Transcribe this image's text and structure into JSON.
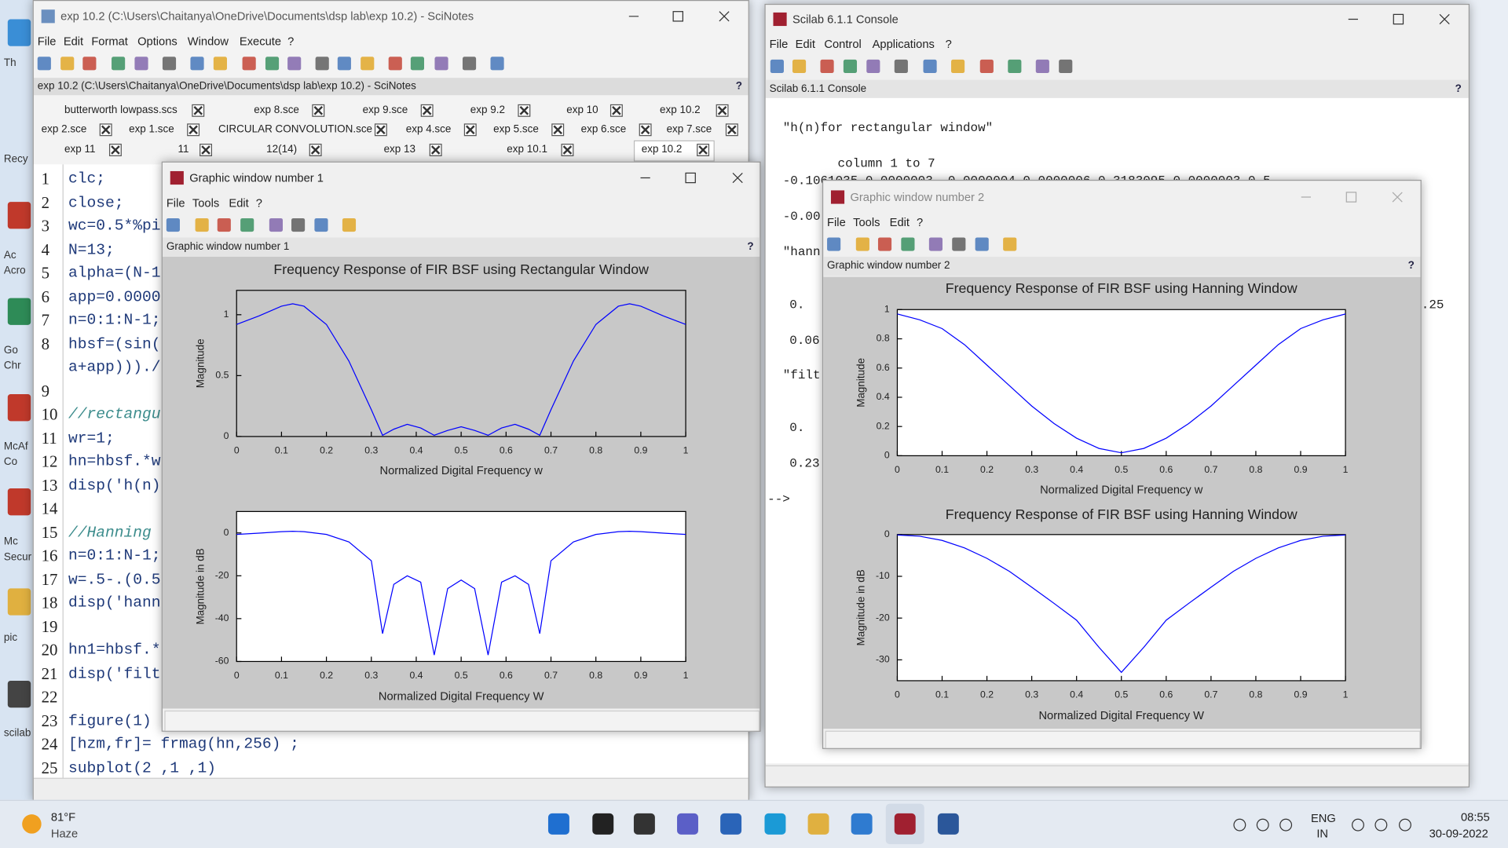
{
  "help_mark": "?",
  "desktop": {
    "icons": [
      "Th",
      "Recy",
      "Ac",
      "Acro",
      "Go",
      "Chr",
      "McAf",
      "Co",
      "Mc",
      "Secur",
      "pic",
      "scilab"
    ]
  },
  "scinotes": {
    "title": "exp 10.2 (C:\\Users\\Chaitanya\\OneDrive\\Documents\\dsp lab\\exp 10.2) - SciNotes",
    "menu": [
      "File",
      "Edit",
      "Format",
      "Options",
      "Window",
      "Execute",
      "?"
    ],
    "path": "exp 10.2 (C:\\Users\\Chaitanya\\OneDrive\\Documents\\dsp lab\\exp 10.2) - SciNotes",
    "tabs": [
      [
        "butterworth lowpass.scs",
        "exp 8.sce",
        "exp 9.sce",
        "exp 9.2",
        "exp 10",
        "exp 10.2"
      ],
      [
        "exp 2.sce",
        "exp 1.sce",
        "CIRCULAR CONVOLUTION.sce",
        "exp 4.sce",
        "exp 5.sce",
        "exp 6.sce",
        "exp 7.sce"
      ],
      [
        "exp 11",
        "11",
        "12(14)",
        "exp 13",
        "exp 10.1",
        "exp 10.2"
      ]
    ],
    "code": [
      {
        "n": "1",
        "text": "clc;"
      },
      {
        "n": "2",
        "text": "close;"
      },
      {
        "n": "3",
        "text": "wc=0.5*%pi"
      },
      {
        "n": "4",
        "text": "N=13;"
      },
      {
        "n": "5",
        "text": "alpha=(N-1"
      },
      {
        "n": "6",
        "text": "app=0.0000"
      },
      {
        "n": "7",
        "text": "n=0:1:N-1;"
      },
      {
        "n": "8",
        "text": "hbsf=(sin("
      },
      {
        "text": "a+app)))./"
      },
      {
        "n": "9"
      },
      {
        "n": "10",
        "text": "//rectangu"
      },
      {
        "n": "11",
        "text": "wr=1;"
      },
      {
        "n": "12",
        "text": "hn=hbsf.*w"
      },
      {
        "n": "13",
        "text": "disp('h(n)"
      },
      {
        "n": "14"
      },
      {
        "n": "15",
        "text": "//Hanning"
      },
      {
        "n": "16",
        "text": "n=0:1:N-1;"
      },
      {
        "n": "17",
        "text": "w=.5-.(0.5"
      },
      {
        "n": "18",
        "text": "disp('hann"
      },
      {
        "n": "19"
      },
      {
        "n": "20",
        "text": "hn1=hbsf.*"
      },
      {
        "n": "21",
        "text": "disp('filt"
      },
      {
        "n": "22"
      },
      {
        "n": "23",
        "text": "figure(1)"
      },
      {
        "n": "24",
        "text": "[hzm,fr]= frmag(hn,256) ;"
      },
      {
        "n": "25",
        "text": "subplot(2 ,1 ,1)"
      }
    ]
  },
  "console": {
    "title": "Scilab 6.1.1 Console",
    "menu": [
      "File",
      "Edit",
      "Control",
      "Applications",
      "?"
    ],
    "header": "Scilab 6.1.1 Console",
    "lines": [
      "\"h(n)for rectangular window\"",
      "column 1 to 7",
      "-0.1061035   0.0000003  -0.0000004   0.0000006   0.3183095   0.0000003   0.5",
      "-0.00",
      "\"hann",
      "0.",
      "0.06",
      "\"filt",
      "0.",
      "0.23",
      "-->"
    ],
    "fragment": ".25"
  },
  "graphics": [
    {
      "title": "Graphic window number 1",
      "menu": [
        "File",
        "Tools",
        "Edit",
        "?"
      ],
      "header": "Graphic window number 1"
    },
    {
      "title": "Graphic window number 2",
      "menu": [
        "File",
        "Tools",
        "Edit",
        "?"
      ],
      "header": "Graphic window number 2"
    }
  ],
  "chart_data": [
    {
      "type": "line",
      "title": "Frequency Response of FIR BSF using Rectangular Window",
      "x_label": "Normalized Digital Frequency w",
      "y_label": "Magnitude",
      "background": "#c8c8c8",
      "x": [
        0,
        0.05,
        0.1,
        0.125,
        0.15,
        0.2,
        0.25,
        0.3,
        0.325,
        0.35,
        0.38,
        0.41,
        0.44,
        0.47,
        0.5,
        0.53,
        0.56,
        0.59,
        0.62,
        0.65,
        0.675,
        0.7,
        0.75,
        0.8,
        0.85,
        0.875,
        0.9,
        0.95,
        1
      ],
      "series": [
        {
          "color": "#0000ff",
          "values": [
            0.92,
            0.99,
            1.07,
            1.09,
            1.07,
            0.92,
            0.62,
            0.22,
            0.01,
            0.06,
            0.1,
            0.07,
            0.01,
            0.05,
            0.08,
            0.05,
            0.01,
            0.07,
            0.1,
            0.06,
            0.01,
            0.22,
            0.62,
            0.92,
            1.07,
            1.09,
            1.07,
            0.99,
            0.92
          ]
        }
      ],
      "xlim": [
        0,
        1
      ],
      "ylim": [
        0,
        1.2
      ],
      "xticks": [
        0,
        0.1,
        0.2,
        0.3,
        0.4,
        0.5,
        0.6,
        0.7,
        0.8,
        0.9,
        1
      ],
      "yticks": [
        0,
        0.5,
        1
      ]
    },
    {
      "type": "line",
      "x_label": "Normalized Digital Frequency W",
      "y_label": "Magnitude in dB",
      "background": "#ffffff",
      "x": [
        0,
        0.05,
        0.1,
        0.125,
        0.15,
        0.2,
        0.25,
        0.3,
        0.325,
        0.35,
        0.38,
        0.41,
        0.44,
        0.47,
        0.5,
        0.53,
        0.56,
        0.59,
        0.62,
        0.65,
        0.675,
        0.7,
        0.75,
        0.8,
        0.85,
        0.875,
        0.9,
        0.95,
        1
      ],
      "series": [
        {
          "color": "#0000ff",
          "values": [
            -0.7,
            -0.1,
            0.6,
            0.75,
            0.6,
            -0.7,
            -4.2,
            -13,
            -47,
            -24,
            -20,
            -23,
            -57,
            -26,
            -22,
            -26,
            -57,
            -23,
            -20,
            -24,
            -47,
            -13,
            -4.2,
            -0.7,
            0.6,
            0.75,
            0.6,
            -0.1,
            -0.7
          ]
        }
      ],
      "xlim": [
        0,
        1
      ],
      "ylim": [
        -60,
        10
      ],
      "xticks": [
        0,
        0.1,
        0.2,
        0.3,
        0.4,
        0.5,
        0.6,
        0.7,
        0.8,
        0.9,
        1
      ],
      "yticks": [
        0,
        -20,
        -40,
        -60
      ]
    },
    {
      "type": "line",
      "title": "Frequency Response of FIR BSF using Hanning Window",
      "x_label": "Normalized Digital Frequency w",
      "y_label": "Magnitude",
      "background": "#ffffff",
      "x": [
        0,
        0.05,
        0.1,
        0.15,
        0.2,
        0.25,
        0.3,
        0.35,
        0.4,
        0.45,
        0.5,
        0.55,
        0.6,
        0.65,
        0.7,
        0.75,
        0.8,
        0.85,
        0.9,
        0.95,
        1
      ],
      "series": [
        {
          "color": "#0000ff",
          "values": [
            0.97,
            0.93,
            0.87,
            0.76,
            0.62,
            0.48,
            0.34,
            0.22,
            0.12,
            0.05,
            0.02,
            0.05,
            0.12,
            0.22,
            0.34,
            0.48,
            0.62,
            0.76,
            0.87,
            0.93,
            0.97
          ]
        }
      ],
      "xlim": [
        0,
        1
      ],
      "ylim": [
        0,
        1
      ],
      "xticks": [
        0,
        0.1,
        0.2,
        0.3,
        0.4,
        0.5,
        0.6,
        0.7,
        0.8,
        0.9,
        1
      ],
      "yticks": [
        0,
        0.2,
        0.4,
        0.6,
        0.8,
        1
      ]
    },
    {
      "type": "line",
      "title": "Frequency Response of FIR BSF using Hanning Window",
      "x_label": "Normalized Digital Frequency W",
      "y_label": "Magnitude in dB",
      "background": "#ffffff",
      "x": [
        0,
        0.05,
        0.1,
        0.15,
        0.2,
        0.25,
        0.3,
        0.35,
        0.4,
        0.45,
        0.5,
        0.55,
        0.6,
        0.65,
        0.7,
        0.75,
        0.8,
        0.85,
        0.9,
        0.95,
        1
      ],
      "series": [
        {
          "color": "#0000ff",
          "values": [
            -0.1,
            -0.4,
            -1.4,
            -3.2,
            -5.7,
            -8.8,
            -12.6,
            -16.5,
            -20.5,
            -27,
            -33,
            -27,
            -20.5,
            -16.5,
            -12.6,
            -8.8,
            -5.7,
            -3.2,
            -1.4,
            -0.4,
            -0.1
          ]
        }
      ],
      "xlim": [
        0,
        1
      ],
      "ylim": [
        -35,
        0
      ],
      "xticks": [
        0,
        0.1,
        0.2,
        0.3,
        0.4,
        0.5,
        0.6,
        0.7,
        0.8,
        0.9,
        1
      ],
      "yticks": [
        0,
        -10,
        -20,
        -30
      ]
    }
  ],
  "taskbar": {
    "temperature": "81°F",
    "weather": "Haze",
    "language": "ENG",
    "region": "IN",
    "time": "08:55",
    "date": "30-09-2022"
  }
}
